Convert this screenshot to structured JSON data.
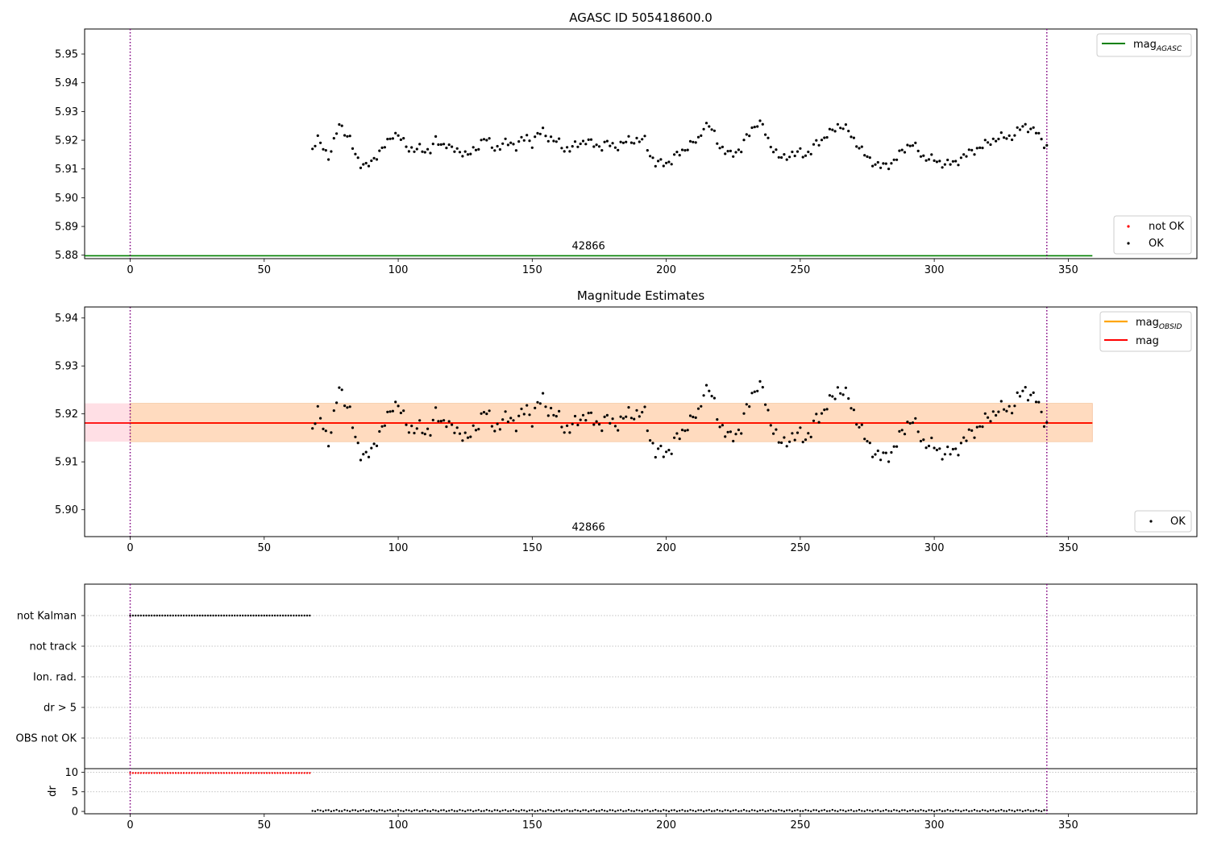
{
  "figure": {
    "title_top": "AGASC ID 505418600.0",
    "title_mid": "Magnitude Estimates",
    "obsid_label": "42866"
  },
  "colors": {
    "ok": "#000000",
    "not_ok": "#ff0000",
    "mag_agasc": "#008000",
    "mag_obsid": "#ffa500",
    "mag": "#ff0000",
    "boundary": "#800080",
    "band_obsid": "#ffdab9",
    "band_mag": "#ffc0cb"
  },
  "legend": {
    "mag_agasc": "mag",
    "mag_agasc_sub": "AGASC",
    "mag_obsid": "mag",
    "mag_obsid_sub": "OBSID",
    "mag": "mag",
    "not_ok": "not OK",
    "ok": "OK"
  },
  "chart_data": [
    {
      "type": "scatter",
      "title": "AGASC ID 505418600.0",
      "xlim": [
        -17,
        398
      ],
      "ylim": [
        5.8788,
        5.9587
      ],
      "xticks": [
        0,
        50,
        100,
        150,
        200,
        250,
        300,
        350
      ],
      "yticks": [
        "5.88",
        "5.89",
        "5.90",
        "5.91",
        "5.92",
        "5.93",
        "5.94",
        "5.95"
      ],
      "vlines": [
        0,
        342
      ],
      "hline": {
        "name": "mag_AGASC",
        "y": 5.8798,
        "x_range": [
          -17,
          359
        ]
      },
      "legends": [
        {
          "entries": [
            "mag_AGASC"
          ],
          "loc": "upper right"
        },
        {
          "entries": [
            "not OK",
            "OK"
          ],
          "loc": "lower right"
        }
      ],
      "obsid_text": {
        "text": "42866",
        "x": 171,
        "y": 5.882
      },
      "series": [
        {
          "name": "OK",
          "x_start": 68,
          "x_end": 342,
          "x_step": 1,
          "knots": [
            [
              68,
              5.917
            ],
            [
              70,
              5.92
            ],
            [
              72,
              5.918
            ],
            [
              74,
              5.914
            ],
            [
              76,
              5.919
            ],
            [
              78,
              5.926
            ],
            [
              80,
              5.923
            ],
            [
              82,
              5.92
            ],
            [
              84,
              5.915
            ],
            [
              86,
              5.912
            ],
            [
              88,
              5.911
            ],
            [
              90,
              5.912
            ],
            [
              92,
              5.915
            ],
            [
              94,
              5.917
            ],
            [
              96,
              5.919
            ],
            [
              98,
              5.922
            ],
            [
              100,
              5.922
            ],
            [
              102,
              5.919
            ],
            [
              104,
              5.917
            ],
            [
              106,
              5.917
            ],
            [
              108,
              5.917
            ],
            [
              110,
              5.916
            ],
            [
              112,
              5.917
            ],
            [
              114,
              5.92
            ],
            [
              116,
              5.918
            ],
            [
              118,
              5.919
            ],
            [
              120,
              5.917
            ],
            [
              122,
              5.916
            ],
            [
              124,
              5.916
            ],
            [
              126,
              5.915
            ],
            [
              128,
              5.916
            ],
            [
              130,
              5.918
            ],
            [
              132,
              5.921
            ],
            [
              134,
              5.919
            ],
            [
              136,
              5.917
            ],
            [
              138,
              5.918
            ],
            [
              140,
              5.919
            ],
            [
              142,
              5.919
            ],
            [
              144,
              5.918
            ],
            [
              146,
              5.92
            ],
            [
              148,
              5.921
            ],
            [
              150,
              5.919
            ],
            [
              152,
              5.922
            ],
            [
              154,
              5.923
            ],
            [
              156,
              5.921
            ],
            [
              158,
              5.92
            ],
            [
              160,
              5.919
            ],
            [
              162,
              5.917
            ],
            [
              164,
              5.917
            ],
            [
              166,
              5.918
            ],
            [
              168,
              5.919
            ],
            [
              170,
              5.92
            ],
            [
              172,
              5.919
            ],
            [
              174,
              5.918
            ],
            [
              176,
              5.918
            ],
            [
              178,
              5.919
            ],
            [
              180,
              5.918
            ],
            [
              182,
              5.918
            ],
            [
              184,
              5.919
            ],
            [
              186,
              5.92
            ],
            [
              188,
              5.92
            ],
            [
              190,
              5.92
            ],
            [
              192,
              5.92
            ],
            [
              194,
              5.915
            ],
            [
              196,
              5.912
            ],
            [
              198,
              5.912
            ],
            [
              200,
              5.912
            ],
            [
              202,
              5.913
            ],
            [
              204,
              5.915
            ],
            [
              206,
              5.916
            ],
            [
              208,
              5.918
            ],
            [
              210,
              5.919
            ],
            [
              212,
              5.92
            ],
            [
              214,
              5.925
            ],
            [
              216,
              5.925
            ],
            [
              218,
              5.922
            ],
            [
              220,
              5.918
            ],
            [
              222,
              5.916
            ],
            [
              224,
              5.915
            ],
            [
              226,
              5.916
            ],
            [
              228,
              5.917
            ],
            [
              230,
              5.921
            ],
            [
              232,
              5.924
            ],
            [
              234,
              5.926
            ],
            [
              236,
              5.925
            ],
            [
              238,
              5.92
            ],
            [
              240,
              5.917
            ],
            [
              242,
              5.914
            ],
            [
              244,
              5.914
            ],
            [
              246,
              5.915
            ],
            [
              248,
              5.915
            ],
            [
              250,
              5.916
            ],
            [
              252,
              5.915
            ],
            [
              254,
              5.916
            ],
            [
              256,
              5.919
            ],
            [
              258,
              5.92
            ],
            [
              260,
              5.922
            ],
            [
              262,
              5.923
            ],
            [
              264,
              5.925
            ],
            [
              266,
              5.925
            ],
            [
              268,
              5.923
            ],
            [
              270,
              5.92
            ],
            [
              272,
              5.918
            ],
            [
              274,
              5.915
            ],
            [
              276,
              5.913
            ],
            [
              278,
              5.912
            ],
            [
              280,
              5.911
            ],
            [
              282,
              5.911
            ],
            [
              284,
              5.912
            ],
            [
              286,
              5.914
            ],
            [
              288,
              5.916
            ],
            [
              290,
              5.918
            ],
            [
              292,
              5.919
            ],
            [
              294,
              5.916
            ],
            [
              296,
              5.914
            ],
            [
              298,
              5.914
            ],
            [
              300,
              5.913
            ],
            [
              302,
              5.912
            ],
            [
              304,
              5.912
            ],
            [
              306,
              5.912
            ],
            [
              308,
              5.912
            ],
            [
              310,
              5.914
            ],
            [
              312,
              5.915
            ],
            [
              314,
              5.916
            ],
            [
              316,
              5.917
            ],
            [
              318,
              5.918
            ],
            [
              320,
              5.919
            ],
            [
              322,
              5.92
            ],
            [
              324,
              5.921
            ],
            [
              326,
              5.921
            ],
            [
              328,
              5.921
            ],
            [
              330,
              5.922
            ],
            [
              332,
              5.924
            ],
            [
              334,
              5.925
            ],
            [
              336,
              5.924
            ],
            [
              338,
              5.923
            ],
            [
              340,
              5.92
            ],
            [
              342,
              5.918
            ]
          ]
        }
      ]
    },
    {
      "type": "scatter",
      "title": "Magnitude Estimates",
      "xlim": [
        -17,
        398
      ],
      "ylim": [
        5.8944,
        5.9423
      ],
      "xticks": [
        0,
        50,
        100,
        150,
        200,
        250,
        300,
        350
      ],
      "yticks": [
        "5.90",
        "5.91",
        "5.92",
        "5.93",
        "5.94"
      ],
      "vlines": [
        0,
        342
      ],
      "lines": [
        {
          "name": "mag_OBSID",
          "y": 5.9181,
          "x_range": [
            -17,
            359
          ]
        },
        {
          "name": "mag",
          "y": 5.9181,
          "x_range": [
            -17,
            359
          ]
        }
      ],
      "bands": [
        {
          "name": "mag_OBSID",
          "y_low": 5.9142,
          "y_high": 5.9222,
          "x_range": [
            0,
            359
          ]
        },
        {
          "name": "mag",
          "y_low": 5.9142,
          "y_high": 5.9222,
          "x_range": [
            -17,
            359
          ]
        }
      ],
      "legends": [
        {
          "entries": [
            "mag_OBSID",
            "mag"
          ],
          "loc": "upper right"
        },
        {
          "entries": [
            "OK"
          ],
          "loc": "lower right"
        }
      ],
      "obsid_text": {
        "text": "42866",
        "x": 171,
        "y": 5.8957
      },
      "series": [
        {
          "name": "OK",
          "same_as": "top panel OK series"
        }
      ]
    },
    {
      "type": "scatter",
      "title": "",
      "xlim": [
        -17,
        398
      ],
      "xticks": [
        0,
        50,
        100,
        150,
        200,
        250,
        300,
        350
      ],
      "flag_rows": [
        "not Kalman",
        "not track",
        "Ion. rad.",
        "dr > 5",
        "OBS not OK"
      ],
      "flag_points": [
        {
          "row": "not Kalman",
          "x_range": [
            0,
            67
          ]
        }
      ],
      "dr": {
        "ylabel": "dr",
        "ylim": [
          -0.6,
          10.9
        ],
        "yticks": [
          "0",
          "5",
          "10"
        ],
        "segments": [
          {
            "x_range": [
              0,
              67
            ],
            "value": 9.8,
            "status": "not OK"
          },
          {
            "x_range": [
              68,
              342
            ],
            "value": 0.2,
            "status": "OK"
          }
        ]
      },
      "vlines": [
        0,
        342
      ]
    }
  ]
}
